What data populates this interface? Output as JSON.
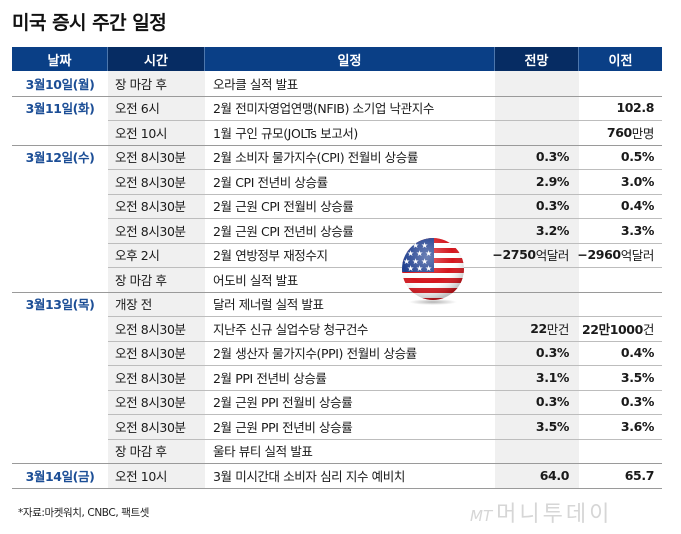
{
  "title": "미국 증시 주간 일정",
  "headers": {
    "date": "날짜",
    "time": "시간",
    "event": "일정",
    "forecast": "전망",
    "previous": "이전"
  },
  "rows": [
    {
      "date": "3월10일(월)",
      "time": "장 마감 후",
      "event": "오라클 실적 발표",
      "forecast": "",
      "forecast_unit": "",
      "previous": "",
      "previous_unit": ""
    },
    {
      "date": "3월11일(화)",
      "time": "오전 6시",
      "event": "2월 전미자영업연맹(NFIB) 소기업 낙관지수",
      "forecast": "",
      "forecast_unit": "",
      "previous": "102.8",
      "previous_unit": ""
    },
    {
      "date": "",
      "time": "오전 10시",
      "event": "1월 구인 규모(JOLTs 보고서)",
      "forecast": "",
      "forecast_unit": "",
      "previous": "760",
      "previous_unit": "만명"
    },
    {
      "date": "3월12일(수)",
      "time": "오전 8시30분",
      "event": "2월 소비자 물가지수(CPI) 전월비 상승률",
      "forecast": "0.3%",
      "forecast_unit": "",
      "previous": "0.5%",
      "previous_unit": ""
    },
    {
      "date": "",
      "time": "오전 8시30분",
      "event": "2월 CPI 전년비 상승률",
      "forecast": "2.9%",
      "forecast_unit": "",
      "previous": "3.0%",
      "previous_unit": ""
    },
    {
      "date": "",
      "time": "오전 8시30분",
      "event": "2월 근원 CPI 전월비 상승률",
      "forecast": "0.3%",
      "forecast_unit": "",
      "previous": "0.4%",
      "previous_unit": ""
    },
    {
      "date": "",
      "time": "오전 8시30분",
      "event": "2월 근원 CPI 전년비 상승률",
      "forecast": "3.2%",
      "forecast_unit": "",
      "previous": "3.3%",
      "previous_unit": ""
    },
    {
      "date": "",
      "time": "오후 2시",
      "event": "2월 연방정부 재정수지",
      "forecast": "−2750",
      "forecast_unit": "억달러",
      "previous": "−2960",
      "previous_unit": "억달러"
    },
    {
      "date": "",
      "time": "장 마감 후",
      "event": "어도비 실적 발표",
      "forecast": "",
      "forecast_unit": "",
      "previous": "",
      "previous_unit": ""
    },
    {
      "date": "3월13일(목)",
      "time": "개장 전",
      "event": "달러 제너럴 실적 발표",
      "forecast": "",
      "forecast_unit": "",
      "previous": "",
      "previous_unit": ""
    },
    {
      "date": "",
      "time": "오전 8시30분",
      "event": "지난주 신규 실업수당 청구건수",
      "forecast": "22",
      "forecast_unit": "만건",
      "previous": "22만1000",
      "previous_unit": "건"
    },
    {
      "date": "",
      "time": "오전 8시30분",
      "event": "2월 생산자 물가지수(PPI) 전월비 상승률",
      "forecast": "0.3%",
      "forecast_unit": "",
      "previous": "0.4%",
      "previous_unit": ""
    },
    {
      "date": "",
      "time": "오전 8시30분",
      "event": "2월 PPI 전년비 상승률",
      "forecast": "3.1%",
      "forecast_unit": "",
      "previous": "3.5%",
      "previous_unit": ""
    },
    {
      "date": "",
      "time": "오전 8시30분",
      "event": "2월 근원 PPI 전월비 상승률",
      "forecast": "0.3%",
      "forecast_unit": "",
      "previous": "0.3%",
      "previous_unit": ""
    },
    {
      "date": "",
      "time": "오전 8시30분",
      "event": "2월 근원 PPI 전년비 상승률",
      "forecast": "3.5%",
      "forecast_unit": "",
      "previous": "3.6%",
      "previous_unit": ""
    },
    {
      "date": "",
      "time": "장 마감 후",
      "event": "울타 뷰티 실적 발표",
      "forecast": "",
      "forecast_unit": "",
      "previous": "",
      "previous_unit": ""
    },
    {
      "date": "3월14일(금)",
      "time": "오전 10시",
      "event": "3월 미시간대 소비자 심리 지수 예비치",
      "forecast": "64.0",
      "forecast_unit": "",
      "previous": "65.7",
      "previous_unit": ""
    }
  ],
  "source": "*자료:마켓워치, CNBC, 팩트셋",
  "watermark": {
    "prefix": "MT",
    "text": "머니투데이"
  },
  "icons": {
    "flag": "us-flag-icon"
  },
  "colors": {
    "header_bg": "#0a3f86",
    "header_dark_bg": "#062c63",
    "date_text": "#1c4e96",
    "shade": "#f0f0f0"
  }
}
